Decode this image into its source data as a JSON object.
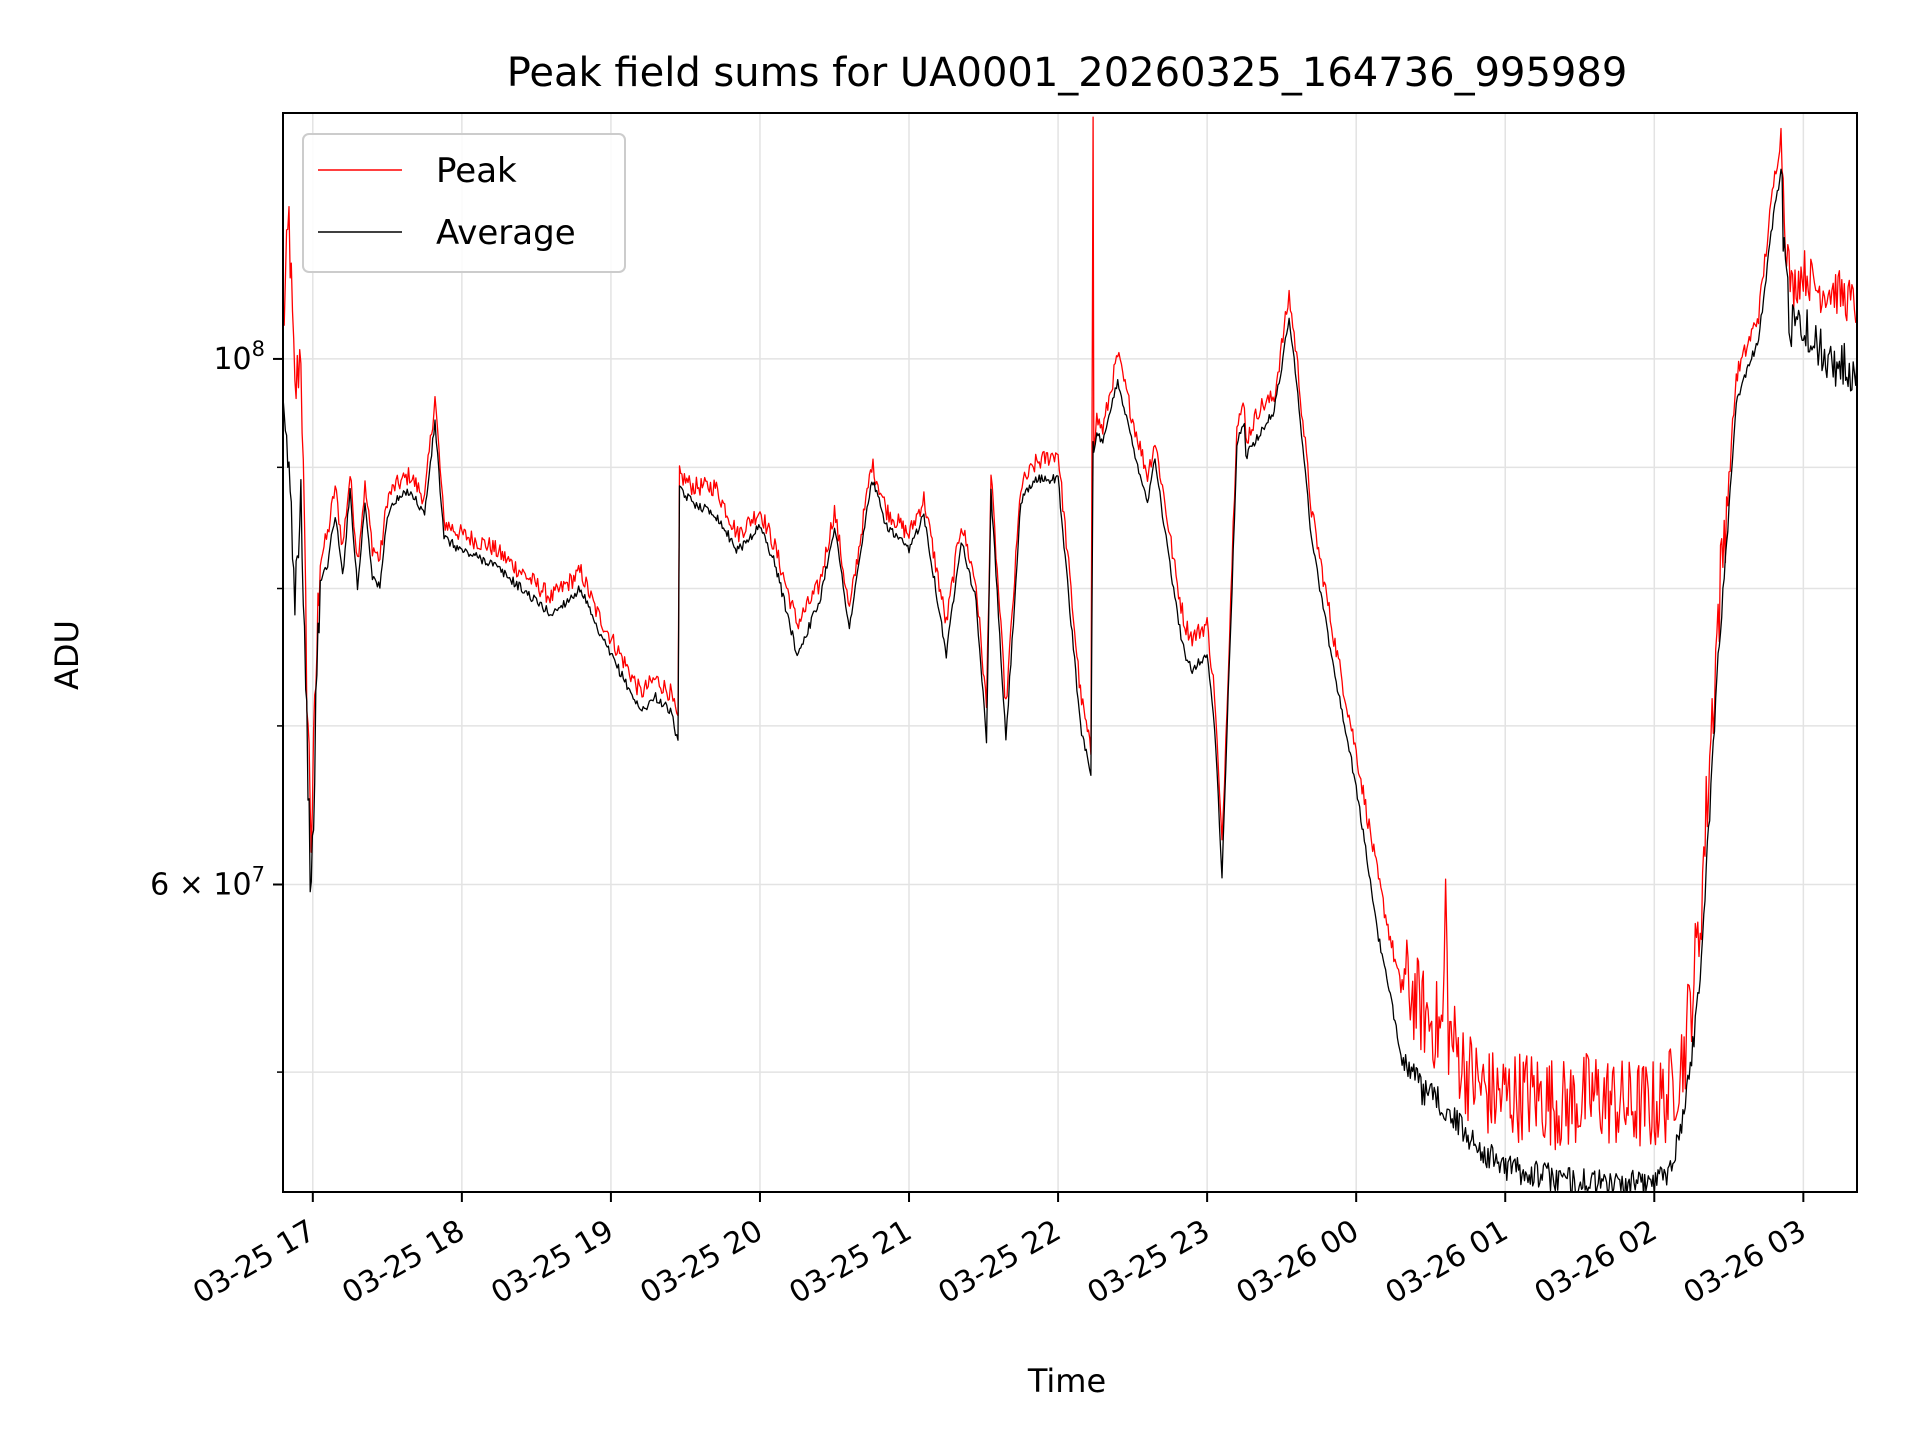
{
  "chart_data": {
    "type": "line",
    "title": "Peak field sums for UA0001_20260325_164736_995989",
    "xlabel": "Time",
    "ylabel": "ADU",
    "yscale": "log",
    "xlim_hours": [
      16.8,
      27.36
    ],
    "ylim": [
      44500000,
      127000000
    ],
    "grid": true,
    "legend_position": "upper left",
    "x_ticks": [
      {
        "label": "03-25 17",
        "hour": 17
      },
      {
        "label": "03-25 18",
        "hour": 18
      },
      {
        "label": "03-25 19",
        "hour": 19
      },
      {
        "label": "03-25 20",
        "hour": 20
      },
      {
        "label": "03-25 21",
        "hour": 21
      },
      {
        "label": "03-25 22",
        "hour": 22
      },
      {
        "label": "03-25 23",
        "hour": 23
      },
      {
        "label": "03-26 00",
        "hour": 24
      },
      {
        "label": "03-26 01",
        "hour": 25
      },
      {
        "label": "03-26 02",
        "hour": 26
      },
      {
        "label": "03-26 03",
        "hour": 27
      }
    ],
    "y_major_ticks": [
      {
        "value": 60000000,
        "base": "6 × 10",
        "exp": "7"
      },
      {
        "value": 100000000,
        "base": "10",
        "exp": "8"
      }
    ],
    "y_minor_ticks": [
      50000000,
      70000000,
      80000000,
      90000000
    ],
    "series": [
      {
        "name": "Peak",
        "color": "#ff0000",
        "x_hours": [
          16.8,
          16.84,
          16.88,
          16.92,
          16.96,
          16.99,
          17.02,
          17.05,
          17.1,
          17.15,
          17.2,
          17.25,
          17.3,
          17.35,
          17.4,
          17.45,
          17.5,
          17.55,
          17.65,
          17.75,
          17.82,
          17.88,
          18.0,
          18.2,
          18.4,
          18.5,
          18.6,
          18.7,
          18.8,
          18.9,
          19.0,
          19.1,
          19.2,
          19.3,
          19.4,
          19.45,
          19.46,
          19.55,
          19.7,
          19.85,
          20.0,
          20.1,
          20.25,
          20.4,
          20.5,
          20.6,
          20.75,
          20.85,
          21.0,
          21.1,
          21.25,
          21.35,
          21.45,
          21.52,
          21.55,
          21.65,
          21.75,
          21.85,
          22.0,
          22.15,
          22.22,
          22.235,
          22.24,
          22.26,
          22.3,
          22.4,
          22.5,
          22.6,
          22.65,
          22.7,
          22.8,
          22.85,
          22.9,
          23.0,
          23.05,
          23.1,
          23.2,
          23.25,
          23.26,
          23.35,
          23.45,
          23.55,
          23.6,
          23.7,
          23.85,
          24.0,
          24.15,
          24.3,
          24.45,
          24.58,
          24.6,
          24.62,
          24.75,
          24.9,
          25.05,
          25.2,
          25.4,
          25.6,
          25.8,
          26.0,
          26.1,
          26.2,
          26.3,
          26.42,
          26.55,
          26.7,
          26.8,
          26.85,
          26.88,
          26.92,
          27.0,
          27.1,
          27.2,
          27.3,
          27.36
        ],
        "values": [
          101000000,
          113000000,
          95000000,
          100000000,
          72000000,
          62000000,
          72000000,
          82000000,
          84000000,
          88000000,
          83000000,
          89000000,
          82000000,
          88000000,
          83000000,
          82000000,
          87000000,
          88000000,
          89000000,
          87000000,
          96000000,
          85000000,
          84000000,
          83000000,
          81000000,
          80000000,
          79000000,
          80000000,
          81000000,
          78000000,
          76000000,
          74000000,
          72000000,
          73000000,
          72000000,
          70000000,
          89000000,
          88000000,
          88000000,
          84000000,
          86000000,
          83000000,
          77000000,
          80000000,
          86000000,
          78000000,
          90000000,
          86000000,
          84000000,
          87000000,
          77000000,
          85000000,
          80000000,
          71000000,
          89000000,
          71000000,
          88000000,
          90000000,
          91000000,
          72000000,
          68000000,
          127000000,
          92000000,
          94000000,
          93000000,
          100000000,
          94000000,
          89000000,
          92000000,
          88000000,
          80000000,
          77000000,
          76000000,
          77000000,
          72000000,
          62000000,
          94000000,
          95000000,
          92000000,
          95000000,
          96000000,
          106000000,
          100000000,
          86000000,
          76000000,
          68000000,
          60000000,
          54000000,
          52000000,
          51000000,
          58000000,
          51000000,
          49000000,
          48000000,
          48000000,
          48000000,
          47500000,
          48000000,
          47500000,
          47500000,
          48000000,
          50000000,
          56000000,
          75000000,
          98000000,
          104000000,
          118000000,
          124000000,
          112000000,
          106000000,
          108000000,
          106000000,
          106000000,
          105000000,
          104000000
        ]
      },
      {
        "name": "Average",
        "color": "#000000",
        "x_hours": [
          16.8,
          16.84,
          16.88,
          16.92,
          16.96,
          16.99,
          17.02,
          17.05,
          17.1,
          17.15,
          17.2,
          17.25,
          17.3,
          17.35,
          17.4,
          17.45,
          17.5,
          17.55,
          17.65,
          17.75,
          17.82,
          17.88,
          18.0,
          18.2,
          18.4,
          18.5,
          18.6,
          18.7,
          18.8,
          18.9,
          19.0,
          19.1,
          19.2,
          19.3,
          19.4,
          19.45,
          19.46,
          19.55,
          19.7,
          19.85,
          20.0,
          20.1,
          20.25,
          20.4,
          20.5,
          20.6,
          20.75,
          20.85,
          21.0,
          21.1,
          21.25,
          21.35,
          21.45,
          21.52,
          21.55,
          21.65,
          21.75,
          21.85,
          22.0,
          22.15,
          22.22,
          22.235,
          22.24,
          22.26,
          22.3,
          22.4,
          22.5,
          22.6,
          22.65,
          22.7,
          22.8,
          22.85,
          22.9,
          23.0,
          23.05,
          23.1,
          23.2,
          23.25,
          23.26,
          23.35,
          23.45,
          23.55,
          23.6,
          23.7,
          23.85,
          24.0,
          24.15,
          24.3,
          24.45,
          24.58,
          24.6,
          24.62,
          24.75,
          24.9,
          25.05,
          25.2,
          25.4,
          25.6,
          25.8,
          26.0,
          26.1,
          26.2,
          26.3,
          26.42,
          26.55,
          26.7,
          26.8,
          26.85,
          26.88,
          26.92,
          27.0,
          27.1,
          27.2,
          27.3,
          27.36
        ],
        "values": [
          94000000,
          90000000,
          80000000,
          88000000,
          70000000,
          58500000,
          71000000,
          80500000,
          82000000,
          86000000,
          81000000,
          88000000,
          80000000,
          87000000,
          81000000,
          80000000,
          86000000,
          87000000,
          88000000,
          86000000,
          94000000,
          84000000,
          83000000,
          82000000,
          80000000,
          79000000,
          78000000,
          79000000,
          80000000,
          77000000,
          75000000,
          73000000,
          71000000,
          72000000,
          71000000,
          69000000,
          88000000,
          87000000,
          86000000,
          83000000,
          85000000,
          82000000,
          75000000,
          79000000,
          85000000,
          77000000,
          89000000,
          85000000,
          83000000,
          86000000,
          75000000,
          84000000,
          79000000,
          69000000,
          88000000,
          69000000,
          87000000,
          89000000,
          89000000,
          70000000,
          67000000,
          92000000,
          91000000,
          93000000,
          92000000,
          98000000,
          92000000,
          87000000,
          91000000,
          86000000,
          78000000,
          75000000,
          74000000,
          75000000,
          70000000,
          60500000,
          92000000,
          94000000,
          91000000,
          93000000,
          95000000,
          104000000,
          98000000,
          84000000,
          74000000,
          66000000,
          57000000,
          51000000,
          49000000,
          48500000,
          48000000,
          48000000,
          47000000,
          46000000,
          45500000,
          45300000,
          45000000,
          44900000,
          44800000,
          44900000,
          45500000,
          48000000,
          54000000,
          73000000,
          96000000,
          102000000,
          115000000,
          120000000,
          108000000,
          103000000,
          103000000,
          101000000,
          100000000,
          99000000,
          100000000
        ]
      }
    ]
  }
}
